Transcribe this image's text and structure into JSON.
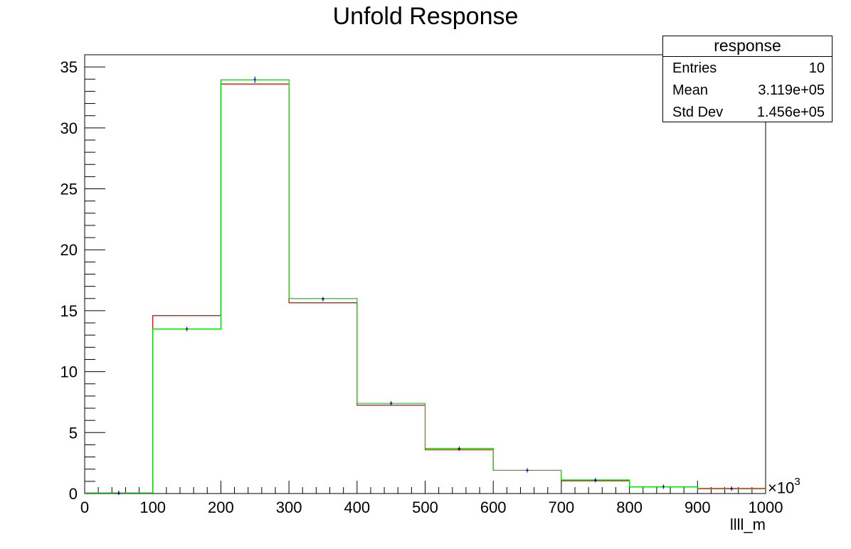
{
  "chart_data": {
    "type": "histogram",
    "title": "Unfold Response",
    "xlabel": "llll_m",
    "x_multiplier": "×10",
    "x_multiplier_exp": "3",
    "xlim": [
      0,
      1000
    ],
    "ylim": [
      0,
      36
    ],
    "x_ticks": [
      "0",
      "100",
      "200",
      "300",
      "400",
      "500",
      "600",
      "700",
      "800",
      "900",
      "1000"
    ],
    "y_ticks": [
      "0",
      "5",
      "10",
      "15",
      "20",
      "25",
      "30",
      "35"
    ],
    "bin_edges": [
      0,
      100,
      200,
      300,
      400,
      500,
      600,
      700,
      800,
      900,
      1000
    ],
    "series": [
      {
        "color": "#cc0000",
        "values": [
          0.05,
          14.6,
          33.6,
          15.65,
          7.25,
          3.6,
          1.9,
          1.05,
          0.55,
          0.42
        ]
      },
      {
        "color": "#00dd00",
        "values": [
          0.05,
          13.5,
          33.95,
          16.0,
          7.4,
          3.7,
          1.9,
          1.12,
          0.55,
          0.38
        ]
      },
      {
        "color": "#0000cc",
        "values": [
          0.05,
          13.5,
          33.95,
          15.95,
          7.4,
          3.68,
          1.9,
          1.1,
          0.56,
          0.4
        ],
        "errors": [
          0.0,
          0.15,
          0.25,
          0.15,
          0.1,
          0.07,
          0.05,
          0.04,
          0.03,
          0.03
        ]
      }
    ],
    "grid": false,
    "legend": "none"
  },
  "stats": {
    "title": "response",
    "rows": [
      {
        "label": "Entries",
        "value": "10"
      },
      {
        "label": "Mean",
        "value": "3.119e+05"
      },
      {
        "label": "Std Dev",
        "value": "1.456e+05"
      }
    ]
  }
}
